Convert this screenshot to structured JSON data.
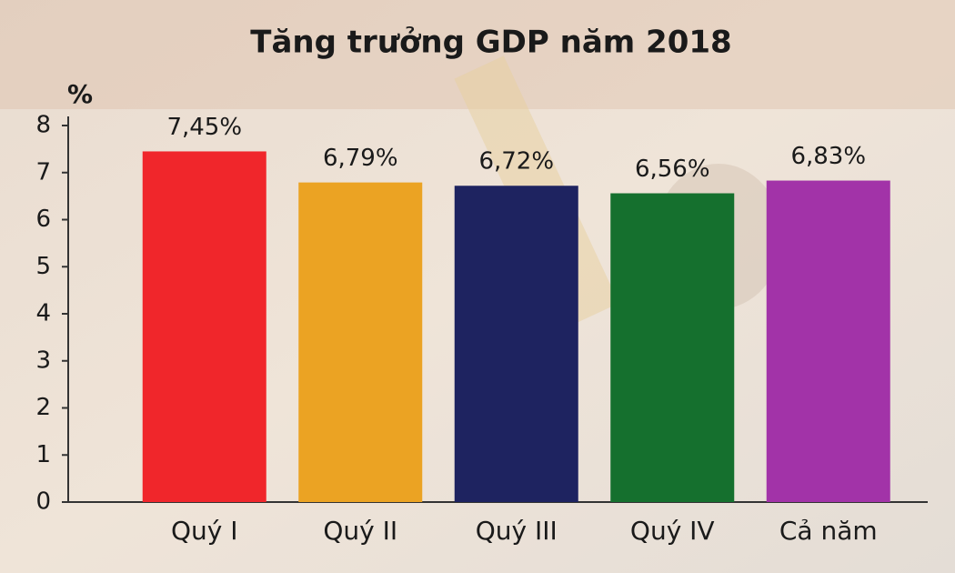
{
  "chart_data": {
    "type": "bar",
    "title": "Tăng trưởng GDP năm 2018",
    "ylabel": "%",
    "categories": [
      "Quý I",
      "Quý II",
      "Quý III",
      "Quý IV",
      "Cả năm"
    ],
    "values": [
      7.45,
      6.79,
      6.72,
      6.56,
      6.83
    ],
    "value_labels": [
      "7,45%",
      "6,79%",
      "6,72%",
      "6,56%",
      "6,83%"
    ],
    "colors": [
      "#f0262b",
      "#eba323",
      "#1e2360",
      "#15702e",
      "#a233a8"
    ],
    "ylim": [
      0,
      8
    ],
    "yticks": [
      0,
      1,
      2,
      3,
      4,
      5,
      6,
      7,
      8
    ],
    "grid": false
  }
}
